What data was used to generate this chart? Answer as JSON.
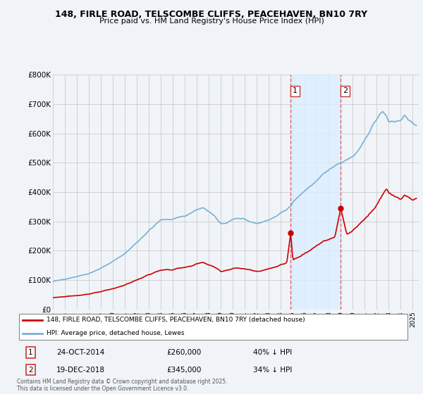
{
  "title1": "148, FIRLE ROAD, TELSCOMBE CLIFFS, PEACEHAVEN, BN10 7RY",
  "title2": "Price paid vs. HM Land Registry's House Price Index (HPI)",
  "legend_label_red": "148, FIRLE ROAD, TELSCOMBE CLIFFS, PEACEHAVEN, BN10 7RY (detached house)",
  "legend_label_blue": "HPI: Average price, detached house, Lewes",
  "annotation1_date": "24-OCT-2014",
  "annotation1_price": "£260,000",
  "annotation1_hpi": "40% ↓ HPI",
  "annotation2_date": "19-DEC-2018",
  "annotation2_price": "£345,000",
  "annotation2_hpi": "34% ↓ HPI",
  "footer": "Contains HM Land Registry data © Crown copyright and database right 2025.\nThis data is licensed under the Open Government Licence v3.0.",
  "ylim": [
    0,
    800000
  ],
  "yticks": [
    0,
    100000,
    200000,
    300000,
    400000,
    500000,
    600000,
    700000,
    800000
  ],
  "xlim_start": 1995.0,
  "xlim_end": 2025.5,
  "color_red": "#cc0000",
  "color_blue": "#7ab0d4",
  "color_shading": "#ddeeff",
  "vline_color": "#dd6666",
  "background_color": "#f0f4f8",
  "plot_bg_color": "#f0f4f8",
  "vline1_x": 2014.83,
  "vline2_x": 2019.0,
  "sale1_x": 2014.83,
  "sale1_y": 260000,
  "sale2_x": 2019.0,
  "sale2_y": 345000
}
